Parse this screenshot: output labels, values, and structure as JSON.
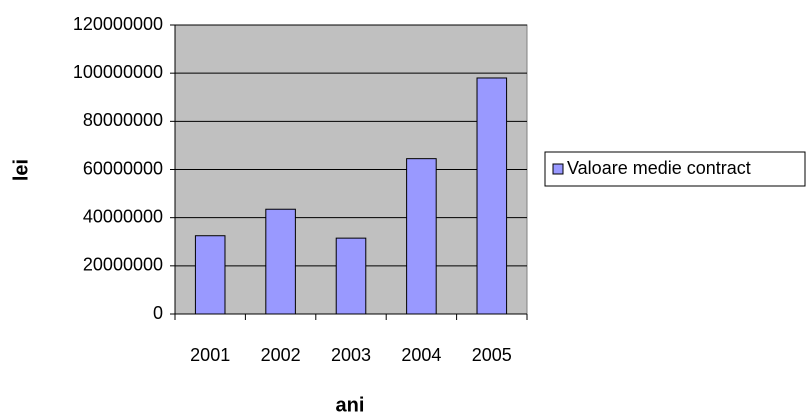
{
  "chart_data": {
    "type": "bar",
    "categories": [
      "2001",
      "2002",
      "2003",
      "2004",
      "2005"
    ],
    "series": [
      {
        "name": "Valoare medie contract",
        "color": "#9999ff",
        "values": [
          32500000,
          43500000,
          31500000,
          64500000,
          98000000
        ]
      }
    ],
    "xlabel": "ani",
    "ylabel": "lei",
    "ylim": [
      0,
      120000000
    ],
    "yticks": [
      0,
      20000000,
      40000000,
      60000000,
      80000000,
      100000000,
      120000000
    ],
    "grid": true,
    "legend": "right",
    "plot_background": "#c0c0c0"
  }
}
